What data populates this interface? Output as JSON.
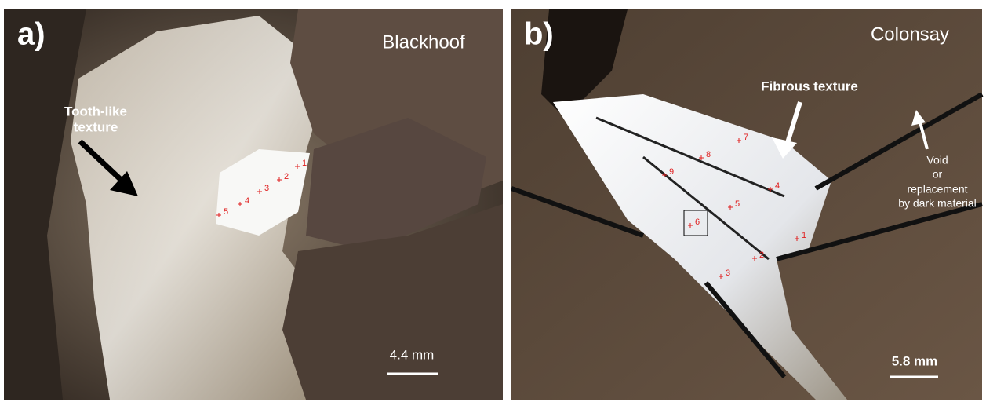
{
  "panels": [
    {
      "label": "a)",
      "site": "Blackhoof",
      "annotation": [
        "Tooth-like",
        "texture"
      ],
      "scale_bar": "4.4 mm",
      "points": [
        "1",
        "2",
        "3",
        "4",
        "5"
      ]
    },
    {
      "label": "b)",
      "site": "Colonsay",
      "annotation": [
        "Fibrous texture"
      ],
      "side_note": [
        "Void",
        "or",
        "replacement",
        "by dark material"
      ],
      "scale_bar": "5.8 mm",
      "points": [
        "7",
        "8",
        "9",
        "4",
        "5",
        "6",
        "1",
        "2",
        "3"
      ]
    }
  ]
}
